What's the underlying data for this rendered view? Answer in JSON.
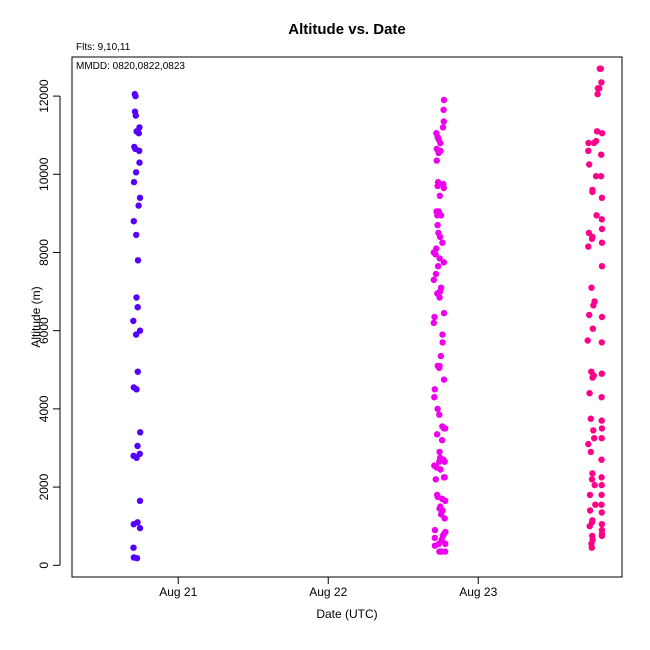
{
  "chart_data": {
    "type": "scatter",
    "title": "Altitude  vs. Date",
    "xlabel": "Date (UTC)",
    "ylabel": "Altitude (m)",
    "ylim": [
      -300,
      13000
    ],
    "xlim": [
      "2008-08-20T07:00",
      "2008-08-23T23:00"
    ],
    "x_ticks": [
      {
        "value": "2008-08-21T00:00",
        "label": "Aug 21"
      },
      {
        "value": "2008-08-22T00:00",
        "label": "Aug 22"
      },
      {
        "value": "2008-08-23T00:00",
        "label": "Aug 23"
      }
    ],
    "y_ticks": [
      0,
      2000,
      4000,
      6000,
      8000,
      10000,
      12000
    ],
    "grid": false,
    "series": [
      {
        "color": "#5500ff",
        "points": [
          [
            "2008-08-20T17:03",
            12050
          ],
          [
            "2008-08-20T17:10",
            12000
          ],
          [
            "2008-08-20T17:05",
            11600
          ],
          [
            "2008-08-20T17:12",
            11500
          ],
          [
            "2008-08-20T17:48",
            11200
          ],
          [
            "2008-08-20T17:20",
            11100
          ],
          [
            "2008-08-20T17:41",
            11050
          ],
          [
            "2008-08-20T16:58",
            10700
          ],
          [
            "2008-08-20T17:08",
            10650
          ],
          [
            "2008-08-20T17:45",
            10600
          ],
          [
            "2008-08-20T17:48",
            10300
          ],
          [
            "2008-08-20T17:15",
            10050
          ],
          [
            "2008-08-20T16:55",
            9800
          ],
          [
            "2008-08-20T17:53",
            9400
          ],
          [
            "2008-08-20T17:39",
            9200
          ],
          [
            "2008-08-20T16:53",
            8800
          ],
          [
            "2008-08-20T17:16",
            8450
          ],
          [
            "2008-08-20T17:34",
            7800
          ],
          [
            "2008-08-20T17:19",
            6850
          ],
          [
            "2008-08-20T17:31",
            6600
          ],
          [
            "2008-08-20T16:48",
            6250
          ],
          [
            "2008-08-20T17:53",
            6000
          ],
          [
            "2008-08-20T17:15",
            5900
          ],
          [
            "2008-08-20T17:32",
            4950
          ],
          [
            "2008-08-20T16:53",
            4550
          ],
          [
            "2008-08-20T17:19",
            4500
          ],
          [
            "2008-08-20T17:55",
            3400
          ],
          [
            "2008-08-20T17:29",
            3050
          ],
          [
            "2008-08-20T17:51",
            2850
          ],
          [
            "2008-08-20T16:51",
            2800
          ],
          [
            "2008-08-20T17:20",
            2750
          ],
          [
            "2008-08-20T17:53",
            1650
          ],
          [
            "2008-08-20T17:29",
            1100
          ],
          [
            "2008-08-20T16:53",
            1050
          ],
          [
            "2008-08-20T17:53",
            950
          ],
          [
            "2008-08-20T16:50",
            450
          ],
          [
            "2008-08-20T16:53",
            200
          ],
          [
            "2008-08-20T17:24",
            180
          ]
        ]
      },
      {
        "color": "#ee00ee",
        "points": [
          [
            "2008-08-22T18:31",
            11900
          ],
          [
            "2008-08-22T18:27",
            11650
          ],
          [
            "2008-08-22T18:29",
            11350
          ],
          [
            "2008-08-22T18:22",
            11200
          ],
          [
            "2008-08-22T17:18",
            11050
          ],
          [
            "2008-08-22T17:31",
            10950
          ],
          [
            "2008-08-22T17:39",
            10900
          ],
          [
            "2008-08-22T17:56",
            10800
          ],
          [
            "2008-08-22T17:22",
            10650
          ],
          [
            "2008-08-22T17:39",
            10550
          ],
          [
            "2008-08-22T17:58",
            10600
          ],
          [
            "2008-08-22T17:22",
            10350
          ],
          [
            "2008-08-22T17:35",
            9800
          ],
          [
            "2008-08-22T17:30",
            9700
          ],
          [
            "2008-08-22T18:24",
            9750
          ],
          [
            "2008-08-22T18:29",
            9650
          ],
          [
            "2008-08-22T17:51",
            9450
          ],
          [
            "2008-08-22T17:19",
            9050
          ],
          [
            "2008-08-22T17:41",
            9050
          ],
          [
            "2008-08-22T17:27",
            8950
          ],
          [
            "2008-08-22T18:03",
            8950
          ],
          [
            "2008-08-22T17:30",
            8700
          ],
          [
            "2008-08-22T17:37",
            8500
          ],
          [
            "2008-08-22T17:53",
            8400
          ],
          [
            "2008-08-22T18:16",
            8250
          ],
          [
            "2008-08-22T17:17",
            8100
          ],
          [
            "2008-08-22T16:53",
            8000
          ],
          [
            "2008-08-22T17:10",
            7950
          ],
          [
            "2008-08-22T17:49",
            7850
          ],
          [
            "2008-08-22T18:29",
            7750
          ],
          [
            "2008-08-22T17:35",
            7650
          ],
          [
            "2008-08-22T17:14",
            7450
          ],
          [
            "2008-08-22T16:53",
            7300
          ],
          [
            "2008-08-22T18:03",
            7100
          ],
          [
            "2008-08-22T17:53",
            7000
          ],
          [
            "2008-08-22T17:27",
            6950
          ],
          [
            "2008-08-22T17:49",
            6850
          ],
          [
            "2008-08-22T18:31",
            6450
          ],
          [
            "2008-08-22T17:00",
            6350
          ],
          [
            "2008-08-22T16:53",
            6200
          ],
          [
            "2008-08-22T18:17",
            5900
          ],
          [
            "2008-08-22T18:18",
            5700
          ],
          [
            "2008-08-22T18:00",
            5350
          ],
          [
            "2008-08-22T17:31",
            5100
          ],
          [
            "2008-08-22T17:49",
            5100
          ],
          [
            "2008-08-22T17:45",
            5050
          ],
          [
            "2008-08-22T18:31",
            4750
          ],
          [
            "2008-08-22T17:03",
            4500
          ],
          [
            "2008-08-22T16:58",
            4300
          ],
          [
            "2008-08-22T17:30",
            4000
          ],
          [
            "2008-08-22T17:46",
            3850
          ],
          [
            "2008-08-22T18:15",
            3550
          ],
          [
            "2008-08-22T18:43",
            3500
          ],
          [
            "2008-08-22T18:31",
            3500
          ],
          [
            "2008-08-22T17:25",
            3350
          ],
          [
            "2008-08-22T18:13",
            3200
          ],
          [
            "2008-08-22T17:49",
            2900
          ],
          [
            "2008-08-22T18:25",
            2700
          ],
          [
            "2008-08-22T17:55",
            2750
          ],
          [
            "2008-08-22T18:38",
            2650
          ],
          [
            "2008-08-22T16:58",
            2550
          ],
          [
            "2008-08-22T17:46",
            2650
          ],
          [
            "2008-08-22T17:21",
            2500
          ],
          [
            "2008-08-22T17:58",
            2450
          ],
          [
            "2008-08-22T18:31",
            2250
          ],
          [
            "2008-08-22T18:38",
            2250
          ],
          [
            "2008-08-22T17:12",
            2200
          ],
          [
            "2008-08-22T17:25",
            1800
          ],
          [
            "2008-08-22T17:31",
            1750
          ],
          [
            "2008-08-22T18:43",
            1650
          ],
          [
            "2008-08-22T18:13",
            1700
          ],
          [
            "2008-08-22T17:56",
            1500
          ],
          [
            "2008-08-22T17:49",
            1450
          ],
          [
            "2008-08-22T18:18",
            1400
          ],
          [
            "2008-08-22T18:03",
            1300
          ],
          [
            "2008-08-22T18:38",
            1200
          ],
          [
            "2008-08-22T17:04",
            900
          ],
          [
            "2008-08-22T18:45",
            850
          ],
          [
            "2008-08-22T18:31",
            800
          ],
          [
            "2008-08-22T18:21",
            750
          ],
          [
            "2008-08-22T17:03",
            700
          ],
          [
            "2008-08-22T18:09",
            650
          ],
          [
            "2008-08-22T18:44",
            550
          ],
          [
            "2008-08-22T17:42",
            550
          ],
          [
            "2008-08-22T17:04",
            500
          ],
          [
            "2008-08-22T18:07",
            350
          ],
          [
            "2008-08-22T17:47",
            350
          ],
          [
            "2008-08-22T18:42",
            350
          ]
        ]
      },
      {
        "color": "#ff0088",
        "points": [
          [
            "2008-08-23T19:27",
            12700
          ],
          [
            "2008-08-23T19:36",
            12700
          ],
          [
            "2008-08-23T19:42",
            12350
          ],
          [
            "2008-08-23T19:22",
            12200
          ],
          [
            "2008-08-23T19:09",
            12200
          ],
          [
            "2008-08-23T19:06",
            12050
          ],
          [
            "2008-08-23T19:00",
            11100
          ],
          [
            "2008-08-23T19:49",
            11050
          ],
          [
            "2008-08-23T17:38",
            10800
          ],
          [
            "2008-08-23T18:51",
            10850
          ],
          [
            "2008-08-23T18:31",
            10800
          ],
          [
            "2008-08-23T17:36",
            10600
          ],
          [
            "2008-08-23T19:40",
            10500
          ],
          [
            "2008-08-23T17:45",
            10250
          ],
          [
            "2008-08-23T18:51",
            9950
          ],
          [
            "2008-08-23T19:39",
            9950
          ],
          [
            "2008-08-23T18:16",
            9600
          ],
          [
            "2008-08-23T18:16",
            9550
          ],
          [
            "2008-08-23T19:47",
            9400
          ],
          [
            "2008-08-23T18:56",
            8950
          ],
          [
            "2008-08-23T19:46",
            8850
          ],
          [
            "2008-08-23T19:48",
            8600
          ],
          [
            "2008-08-23T17:42",
            8500
          ],
          [
            "2008-08-23T18:16",
            8400
          ],
          [
            "2008-08-23T18:12",
            8350
          ],
          [
            "2008-08-23T19:48",
            8250
          ],
          [
            "2008-08-23T17:36",
            8150
          ],
          [
            "2008-08-23T19:48",
            7650
          ],
          [
            "2008-08-23T18:07",
            7100
          ],
          [
            "2008-08-23T18:37",
            6750
          ],
          [
            "2008-08-23T18:25",
            6650
          ],
          [
            "2008-08-23T17:45",
            6400
          ],
          [
            "2008-08-23T19:48",
            6350
          ],
          [
            "2008-08-23T18:21",
            6050
          ],
          [
            "2008-08-23T17:31",
            5750
          ],
          [
            "2008-08-23T19:46",
            5700
          ],
          [
            "2008-08-23T18:05",
            4950
          ],
          [
            "2008-08-23T18:29",
            4850
          ],
          [
            "2008-08-23T18:18",
            4800
          ],
          [
            "2008-08-23T19:46",
            4900
          ],
          [
            "2008-08-23T17:49",
            4400
          ],
          [
            "2008-08-23T19:44",
            4300
          ],
          [
            "2008-08-23T18:00",
            3750
          ],
          [
            "2008-08-23T19:45",
            3700
          ],
          [
            "2008-08-23T19:47",
            3500
          ],
          [
            "2008-08-23T18:24",
            3450
          ],
          [
            "2008-08-23T19:45",
            3250
          ],
          [
            "2008-08-23T18:33",
            3250
          ],
          [
            "2008-08-23T17:36",
            3100
          ],
          [
            "2008-08-23T18:00",
            2900
          ],
          [
            "2008-08-23T19:43",
            2700
          ],
          [
            "2008-08-23T18:16",
            2350
          ],
          [
            "2008-08-23T18:12",
            2200
          ],
          [
            "2008-08-23T19:44",
            2250
          ],
          [
            "2008-08-23T18:38",
            2050
          ],
          [
            "2008-08-23T19:45",
            2050
          ],
          [
            "2008-08-23T17:53",
            1800
          ],
          [
            "2008-08-23T19:44",
            1800
          ],
          [
            "2008-08-23T19:43",
            1550
          ],
          [
            "2008-08-23T18:44",
            1550
          ],
          [
            "2008-08-23T17:54",
            1400
          ],
          [
            "2008-08-23T19:46",
            1350
          ],
          [
            "2008-08-23T18:16",
            1150
          ],
          [
            "2008-08-23T18:12",
            1100
          ],
          [
            "2008-08-23T19:47",
            1050
          ],
          [
            "2008-08-23T17:50",
            1000
          ],
          [
            "2008-08-23T19:47",
            900
          ],
          [
            "2008-08-23T19:48",
            800
          ],
          [
            "2008-08-23T18:14",
            750
          ],
          [
            "2008-08-23T18:18",
            650
          ],
          [
            "2008-08-23T18:06",
            550
          ],
          [
            "2008-08-23T18:10",
            450
          ],
          [
            "2008-08-23T19:47",
            750
          ]
        ]
      }
    ]
  },
  "annotations": {
    "flights": "Flts: 9,10,11",
    "mmdd": "MMDD: 0820,0822,0823"
  }
}
